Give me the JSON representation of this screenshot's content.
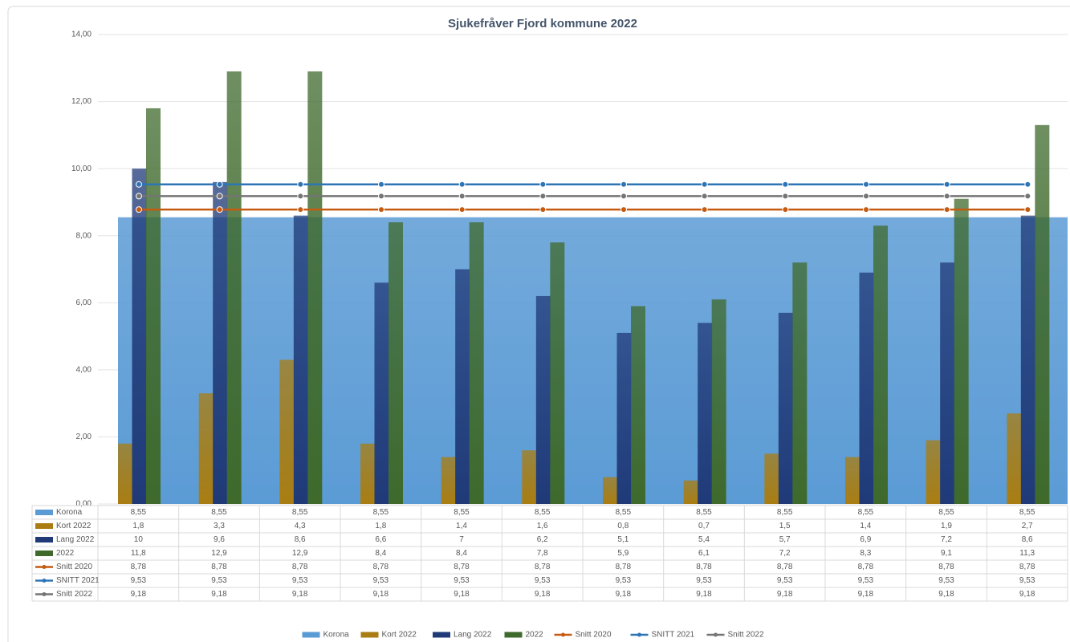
{
  "chart_data": {
    "type": "combo",
    "title": "Sjukefråver Fjord kommune 2022",
    "categories": [
      null,
      null,
      null,
      null,
      null,
      null,
      null,
      null,
      null,
      null,
      null,
      null
    ],
    "ylim": [
      0,
      14
    ],
    "yticks": [
      {
        "value": 0,
        "label": "0,00"
      },
      {
        "value": 2,
        "label": "2,00"
      },
      {
        "value": 4,
        "label": "4,00"
      },
      {
        "value": 6,
        "label": "6,00"
      },
      {
        "value": 8,
        "label": "8,00"
      },
      {
        "value": 10,
        "label": "10,00"
      },
      {
        "value": 12,
        "label": "12,00"
      },
      {
        "value": 14,
        "label": "14,00"
      }
    ],
    "grid": true,
    "series": [
      {
        "name": "Korona",
        "type": "area",
        "color": "#5b9bd5",
        "values": [
          8.55,
          8.55,
          8.55,
          8.55,
          8.55,
          8.55,
          8.55,
          8.55,
          8.55,
          8.55,
          8.55,
          8.55
        ],
        "value_labels": [
          "8,55",
          "8,55",
          "8,55",
          "8,55",
          "8,55",
          "8,55",
          "8,55",
          "8,55",
          "8,55",
          "8,55",
          "8,55",
          "8,55"
        ]
      },
      {
        "name": "Kort 2022",
        "type": "bar",
        "color": "#a97d12",
        "values": [
          1.8,
          3.3,
          4.3,
          1.8,
          1.4,
          1.6,
          0.8,
          0.7,
          1.5,
          1.4,
          1.9,
          2.7
        ],
        "value_labels": [
          "1,8",
          "3,3",
          "4,3",
          "1,8",
          "1,4",
          "1,6",
          "0,8",
          "0,7",
          "1,5",
          "1,4",
          "1,9",
          "2,7"
        ]
      },
      {
        "name": "Lang 2022",
        "type": "bar",
        "color": "#203a78",
        "values": [
          10,
          9.6,
          8.6,
          6.6,
          7,
          6.2,
          5.1,
          5.4,
          5.7,
          6.9,
          7.2,
          8.6
        ],
        "value_labels": [
          "10",
          "9,6",
          "8,6",
          "6,6",
          "7",
          "6,2",
          "5,1",
          "5,4",
          "5,7",
          "6,9",
          "7,2",
          "8,6"
        ]
      },
      {
        "name": "2022",
        "type": "bar",
        "color": "#3f6a2c",
        "values": [
          11.8,
          12.9,
          12.9,
          8.4,
          8.4,
          7.8,
          5.9,
          6.1,
          7.2,
          8.3,
          9.1,
          11.3
        ],
        "value_labels": [
          "11,8",
          "12,9",
          "12,9",
          "8,4",
          "8,4",
          "7,8",
          "5,9",
          "6,1",
          "7,2",
          "8,3",
          "9,1",
          "11,3"
        ]
      },
      {
        "name": "Snitt 2020",
        "type": "line",
        "color": "#c55a11",
        "values": [
          8.78,
          8.78,
          8.78,
          8.78,
          8.78,
          8.78,
          8.78,
          8.78,
          8.78,
          8.78,
          8.78,
          8.78
        ],
        "value_labels": [
          "8,78",
          "8,78",
          "8,78",
          "8,78",
          "8,78",
          "8,78",
          "8,78",
          "8,78",
          "8,78",
          "8,78",
          "8,78",
          "8,78"
        ]
      },
      {
        "name": "SNITT 2021",
        "type": "line",
        "color": "#2e75b6",
        "values": [
          9.53,
          9.53,
          9.53,
          9.53,
          9.53,
          9.53,
          9.53,
          9.53,
          9.53,
          9.53,
          9.53,
          9.53
        ],
        "value_labels": [
          "9,53",
          "9,53",
          "9,53",
          "9,53",
          "9,53",
          "9,53",
          "9,53",
          "9,53",
          "9,53",
          "9,53",
          "9,53",
          "9,53"
        ]
      },
      {
        "name": "Snitt 2022",
        "type": "line",
        "color": "#757575",
        "values": [
          9.18,
          9.18,
          9.18,
          9.18,
          9.18,
          9.18,
          9.18,
          9.18,
          9.18,
          9.18,
          9.18,
          9.18
        ],
        "value_labels": [
          "9,18",
          "9,18",
          "9,18",
          "9,18",
          "9,18",
          "9,18",
          "9,18",
          "9,18",
          "9,18",
          "9,18",
          "9,18",
          "9,18"
        ]
      }
    ]
  }
}
